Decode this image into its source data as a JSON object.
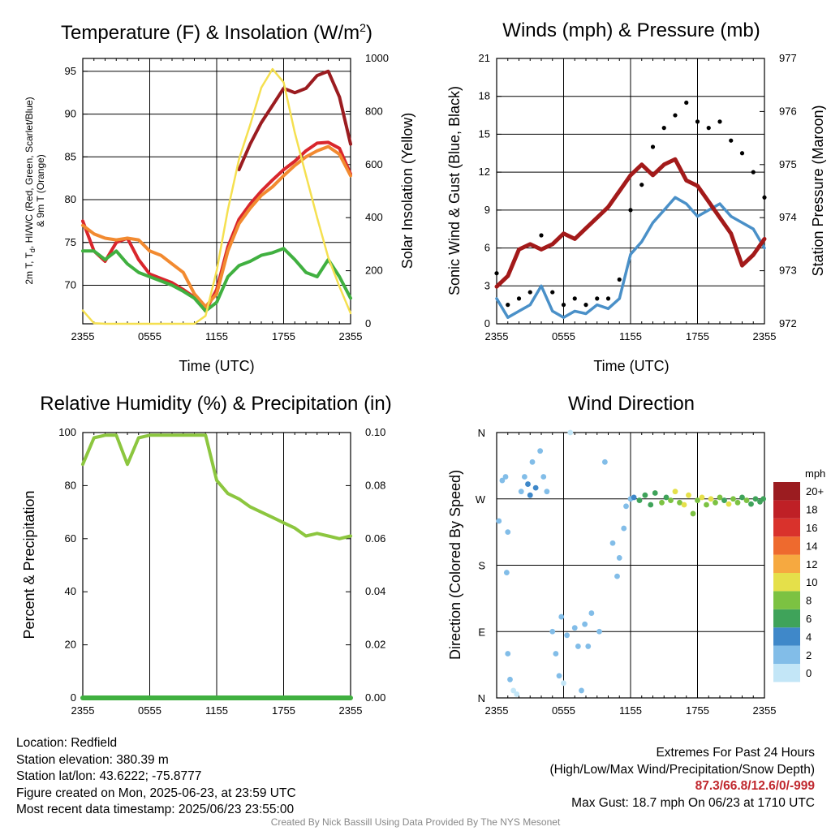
{
  "panels": {
    "temperature": {
      "title_pre": "Temperature (F) & Insolation (W/m",
      "title_sup": "2",
      "title_post": ")",
      "ylabel_left_line1": "2m T, T",
      "ylabel_left_sub": "d",
      "ylabel_left_line1b": ", HI/WC (Red, Green, Scarlet/Blue)",
      "ylabel_left_line2": "& 9m T (Orange)",
      "ylabel_right": "Solar Insolation (Yellow)",
      "xlabel": "Time (UTC)"
    },
    "winds": {
      "title": "Winds (mph) & Pressure (mb)",
      "ylabel_left": "Sonic Wind & Gust (Blue, Black)",
      "ylabel_right": "Station Pressure (Maroon)",
      "xlabel": "Time (UTC)"
    },
    "humidity": {
      "title": "Relative Humidity (%) & Precipitation (in)",
      "ylabel_left": "Percent & Precipitation"
    },
    "direction": {
      "title": "Wind Direction",
      "ylabel_left": "Direction (Colored By Speed)",
      "legend_title": "mph"
    }
  },
  "chart_data": [
    {
      "type": "line",
      "title": "Temperature (F) & Insolation (W/m2)",
      "xlabel": "Time (UTC)",
      "ylabel": "2m T, Td, HI/WC (Red, Green, Scarlet/Blue) & 9m T (Orange)",
      "y2label": "Solar Insolation (Yellow)",
      "x_ticks": [
        "2355",
        "0555",
        "1155",
        "1755",
        "2355"
      ],
      "ylim": [
        65.5,
        96.5
      ],
      "y_ticks": [
        70,
        75,
        80,
        85,
        90,
        95
      ],
      "y2lim": [
        0,
        1000
      ],
      "y2_ticks": [
        0,
        200,
        400,
        600,
        800,
        1000
      ],
      "x_hours": [
        0,
        1,
        2,
        3,
        4,
        5,
        6,
        7,
        8,
        9,
        10,
        11,
        12,
        13,
        14,
        15,
        16,
        17,
        18,
        19,
        20,
        21,
        22,
        23,
        24
      ],
      "series": [
        {
          "name": "2m T",
          "color": "#d9262c",
          "axis": "left",
          "values": [
            77.5,
            74.0,
            72.8,
            75.0,
            75.5,
            73.0,
            71.3,
            70.8,
            70.3,
            69.5,
            68.6,
            67.0,
            69.5,
            74.5,
            77.7,
            79.5,
            81.0,
            82.3,
            83.5,
            84.5,
            85.7,
            86.6,
            86.7,
            86.0,
            83.0
          ]
        },
        {
          "name": "9m T",
          "color": "#f28a30",
          "axis": "left",
          "values": [
            77.0,
            76.0,
            75.5,
            75.3,
            75.5,
            75.3,
            74.0,
            73.5,
            72.5,
            71.5,
            69.0,
            67.5,
            69.0,
            74.0,
            77.2,
            79.0,
            80.5,
            81.5,
            82.8,
            84.0,
            85.0,
            85.7,
            86.2,
            85.3,
            82.8
          ]
        },
        {
          "name": "Td",
          "color": "#40b040",
          "axis": "left",
          "values": [
            74.0,
            74.0,
            73.0,
            74.0,
            72.5,
            71.5,
            71.0,
            70.5,
            70.0,
            69.3,
            68.5,
            67.0,
            68.0,
            71.0,
            72.3,
            72.8,
            73.5,
            73.8,
            74.3,
            73.0,
            71.5,
            71.0,
            73.0,
            71.0,
            68.5
          ]
        },
        {
          "name": "HI/WC",
          "color": "#9b1c20",
          "axis": "left",
          "values": [
            null,
            null,
            null,
            null,
            null,
            null,
            null,
            null,
            null,
            null,
            null,
            null,
            null,
            null,
            83.5,
            86.5,
            89.0,
            91.0,
            93.0,
            92.5,
            93.0,
            94.5,
            95.0,
            92.0,
            86.5
          ]
        },
        {
          "name": "Solar Insolation",
          "color": "#f5e050",
          "axis": "right",
          "values": [
            50,
            2,
            0,
            0,
            0,
            0,
            0,
            0,
            0,
            0,
            0,
            30,
            200,
            430,
            620,
            750,
            890,
            960,
            910,
            720,
            560,
            400,
            250,
            140,
            40
          ]
        }
      ]
    },
    {
      "type": "line",
      "title": "Winds (mph) & Pressure (mb)",
      "xlabel": "Time (UTC)",
      "ylabel": "Sonic Wind & Gust (Blue, Black)",
      "y2label": "Station Pressure (Maroon)",
      "x_ticks": [
        "2355",
        "0555",
        "1155",
        "1755",
        "2355"
      ],
      "ylim": [
        0,
        21
      ],
      "y_ticks": [
        0,
        3,
        6,
        9,
        12,
        15,
        18,
        21
      ],
      "y2lim": [
        972,
        977
      ],
      "y2_ticks": [
        972,
        973,
        974,
        975,
        976,
        977
      ],
      "x_hours": [
        0,
        1,
        2,
        3,
        4,
        5,
        6,
        7,
        8,
        9,
        10,
        11,
        12,
        13,
        14,
        15,
        16,
        17,
        18,
        19,
        20,
        21,
        22,
        23,
        24
      ],
      "series": [
        {
          "name": "Sonic Wind",
          "color": "#4a90c8",
          "axis": "left",
          "values": [
            2.0,
            0.5,
            1.0,
            1.5,
            3.0,
            1.0,
            0.5,
            1.0,
            0.8,
            1.5,
            1.2,
            2.0,
            5.5,
            6.5,
            8.0,
            9.0,
            10.0,
            9.5,
            8.5,
            9.0,
            9.5,
            8.5,
            8.0,
            7.5,
            6.0
          ]
        },
        {
          "name": "Gust",
          "color": "#000000",
          "axis": "left",
          "values": [
            4.0,
            1.5,
            2.0,
            2.5,
            7.0,
            2.5,
            1.5,
            2.0,
            1.5,
            2.0,
            2.0,
            3.5,
            9.0,
            11.0,
            14.0,
            15.5,
            16.5,
            17.5,
            16.0,
            15.5,
            16.0,
            14.5,
            13.5,
            12.0,
            10.0
          ]
        },
        {
          "name": "Station Pressure",
          "color": "#a31a1a",
          "axis": "right",
          "values": [
            972.7,
            972.9,
            973.4,
            973.5,
            973.4,
            973.5,
            973.7,
            973.6,
            973.8,
            974.0,
            974.2,
            974.5,
            974.8,
            975.0,
            974.8,
            975.0,
            975.1,
            974.7,
            974.6,
            974.3,
            974.0,
            973.7,
            973.1,
            973.3,
            973.6
          ]
        }
      ]
    },
    {
      "type": "line",
      "title": "Relative Humidity (%) & Precipitation (in)",
      "ylabel": "Percent & Precipitation",
      "x_ticks": [
        "2355",
        "0555",
        "1155",
        "1755",
        "2355"
      ],
      "ylim": [
        0,
        100
      ],
      "y_ticks": [
        0,
        20,
        40,
        60,
        80,
        100
      ],
      "y2lim": [
        0,
        0.1
      ],
      "y2_ticks": [
        "0.00",
        "0.02",
        "0.04",
        "0.06",
        "0.08",
        "0.10"
      ],
      "x_hours": [
        0,
        1,
        2,
        3,
        4,
        5,
        6,
        7,
        8,
        9,
        10,
        11,
        12,
        13,
        14,
        15,
        16,
        17,
        18,
        19,
        20,
        21,
        22,
        23,
        24
      ],
      "series": [
        {
          "name": "Relative Humidity",
          "color": "#8cc63f",
          "axis": "left",
          "values": [
            88,
            98,
            99,
            99,
            88,
            98,
            99,
            99,
            99,
            99,
            99,
            99,
            82,
            77,
            75,
            72,
            70,
            68,
            66,
            64,
            61,
            62,
            61,
            60,
            61
          ]
        },
        {
          "name": "Precipitation",
          "color": "#40b040",
          "axis": "right",
          "values": [
            0,
            0,
            0,
            0,
            0,
            0,
            0,
            0,
            0,
            0,
            0,
            0,
            0,
            0,
            0,
            0,
            0,
            0,
            0,
            0,
            0,
            0,
            0,
            0,
            0
          ]
        }
      ]
    },
    {
      "type": "scatter",
      "title": "Wind Direction",
      "ylabel": "Direction (Colored By Speed)",
      "x_ticks": [
        "2355",
        "0555",
        "1155",
        "1755",
        "2355"
      ],
      "y_ticks": [
        "N",
        "E",
        "S",
        "W",
        "N"
      ],
      "ylim": [
        0,
        360
      ],
      "legend_title": "mph",
      "legend_labels": [
        "0",
        "2",
        "4",
        "6",
        "8",
        "10",
        "12",
        "14",
        "16",
        "18",
        "20+"
      ],
      "legend_colors": [
        "#c3e6f7",
        "#82bde8",
        "#3f88c9",
        "#3fa35a",
        "#7cc242",
        "#e5e04a",
        "#f6a940",
        "#ee6a2e",
        "#d9322c",
        "#bf2026",
        "#9b1c20"
      ],
      "points": [
        {
          "x": 0.2,
          "dir": 240,
          "speed": 1
        },
        {
          "x": 0.5,
          "dir": 295,
          "speed": 1
        },
        {
          "x": 0.8,
          "dir": 300,
          "speed": 1
        },
        {
          "x": 1.0,
          "dir": 60,
          "speed": 1
        },
        {
          "x": 1.2,
          "dir": 25,
          "speed": 1
        },
        {
          "x": 1.5,
          "dir": 10,
          "speed": 0
        },
        {
          "x": 0.9,
          "dir": 170,
          "speed": 1
        },
        {
          "x": 1.0,
          "dir": 225,
          "speed": 1
        },
        {
          "x": 1.8,
          "dir": 5,
          "speed": 0
        },
        {
          "x": 2.5,
          "dir": 300,
          "speed": 2
        },
        {
          "x": 2.8,
          "dir": 290,
          "speed": 3
        },
        {
          "x": 3.0,
          "dir": 275,
          "speed": 3
        },
        {
          "x": 3.2,
          "dir": 320,
          "speed": 2
        },
        {
          "x": 3.5,
          "dir": 285,
          "speed": 3
        },
        {
          "x": 3.9,
          "dir": 335,
          "speed": 1
        },
        {
          "x": 4.2,
          "dir": 300,
          "speed": 2
        },
        {
          "x": 4.5,
          "dir": 280,
          "speed": 2
        },
        {
          "x": 2.2,
          "dir": 280,
          "speed": 1
        },
        {
          "x": 5.0,
          "dir": 90,
          "speed": 1
        },
        {
          "x": 5.3,
          "dir": 60,
          "speed": 1
        },
        {
          "x": 5.6,
          "dir": 30,
          "speed": 1
        },
        {
          "x": 5.8,
          "dir": 110,
          "speed": 1
        },
        {
          "x": 6.0,
          "dir": 20,
          "speed": 0
        },
        {
          "x": 6.3,
          "dir": 85,
          "speed": 1
        },
        {
          "x": 6.6,
          "dir": 360,
          "speed": 0
        },
        {
          "x": 7.0,
          "dir": 95,
          "speed": 2
        },
        {
          "x": 7.3,
          "dir": 70,
          "speed": 1
        },
        {
          "x": 7.6,
          "dir": 10,
          "speed": 1
        },
        {
          "x": 7.9,
          "dir": 100,
          "speed": 1
        },
        {
          "x": 8.2,
          "dir": 70,
          "speed": 1
        },
        {
          "x": 8.5,
          "dir": 115,
          "speed": 2
        },
        {
          "x": 9.2,
          "dir": 90,
          "speed": 1
        },
        {
          "x": 9.7,
          "dir": 320,
          "speed": 1
        },
        {
          "x": 10.4,
          "dir": 210,
          "speed": 1
        },
        {
          "x": 10.8,
          "dir": 165,
          "speed": 1
        },
        {
          "x": 11.0,
          "dir": 190,
          "speed": 2
        },
        {
          "x": 11.4,
          "dir": 230,
          "speed": 1
        },
        {
          "x": 11.6,
          "dir": 260,
          "speed": 1
        },
        {
          "x": 12.0,
          "dir": 270,
          "speed": 2
        },
        {
          "x": 12.3,
          "dir": 272,
          "speed": 3
        },
        {
          "x": 12.8,
          "dir": 268,
          "speed": 5
        },
        {
          "x": 13.3,
          "dir": 275,
          "speed": 6
        },
        {
          "x": 13.8,
          "dir": 262,
          "speed": 5
        },
        {
          "x": 14.2,
          "dir": 278,
          "speed": 6
        },
        {
          "x": 14.8,
          "dir": 265,
          "speed": 8
        },
        {
          "x": 15.2,
          "dir": 272,
          "speed": 6
        },
        {
          "x": 15.6,
          "dir": 268,
          "speed": 7
        },
        {
          "x": 16.0,
          "dir": 280,
          "speed": 10
        },
        {
          "x": 16.4,
          "dir": 265,
          "speed": 8
        },
        {
          "x": 16.8,
          "dir": 262,
          "speed": 9
        },
        {
          "x": 17.2,
          "dir": 275,
          "speed": 10
        },
        {
          "x": 17.6,
          "dir": 250,
          "speed": 7
        },
        {
          "x": 18.0,
          "dir": 268,
          "speed": 8
        },
        {
          "x": 18.4,
          "dir": 272,
          "speed": 9
        },
        {
          "x": 18.8,
          "dir": 262,
          "speed": 7
        },
        {
          "x": 19.2,
          "dir": 270,
          "speed": 10
        },
        {
          "x": 19.6,
          "dir": 265,
          "speed": 8
        },
        {
          "x": 20.0,
          "dir": 272,
          "speed": 7
        },
        {
          "x": 20.4,
          "dir": 268,
          "speed": 6
        },
        {
          "x": 20.8,
          "dir": 263,
          "speed": 9
        },
        {
          "x": 21.2,
          "dir": 270,
          "speed": 8
        },
        {
          "x": 21.6,
          "dir": 265,
          "speed": 7
        },
        {
          "x": 22.0,
          "dir": 272,
          "speed": 6
        },
        {
          "x": 22.4,
          "dir": 268,
          "speed": 7
        },
        {
          "x": 22.8,
          "dir": 263,
          "speed": 6
        },
        {
          "x": 23.2,
          "dir": 270,
          "speed": 6
        },
        {
          "x": 23.6,
          "dir": 266,
          "speed": 5
        },
        {
          "x": 23.9,
          "dir": 270,
          "speed": 6
        }
      ]
    }
  ],
  "footer": {
    "location": "Location: Redfield",
    "elevation": "Station elevation: 380.39 m",
    "latlon": "Station lat/lon: 43.6222; -75.8777",
    "created": "Figure created on Mon, 2025-06-23, at 23:59 UTC",
    "recent": "Most recent data timestamp: 2025/06/23 23:55:00",
    "extremes_title": "Extremes For Past 24 Hours",
    "extremes_legend": "(High/Low/Max Wind/Precipitation/Snow Depth)",
    "extremes_values": "87.3/66.8/12.6/0/-999",
    "max_gust": "Max Gust: 18.7 mph On 06/23 at 1710 UTC",
    "credit": "Created By Nick Bassill Using Data Provided By The NYS Mesonet"
  }
}
